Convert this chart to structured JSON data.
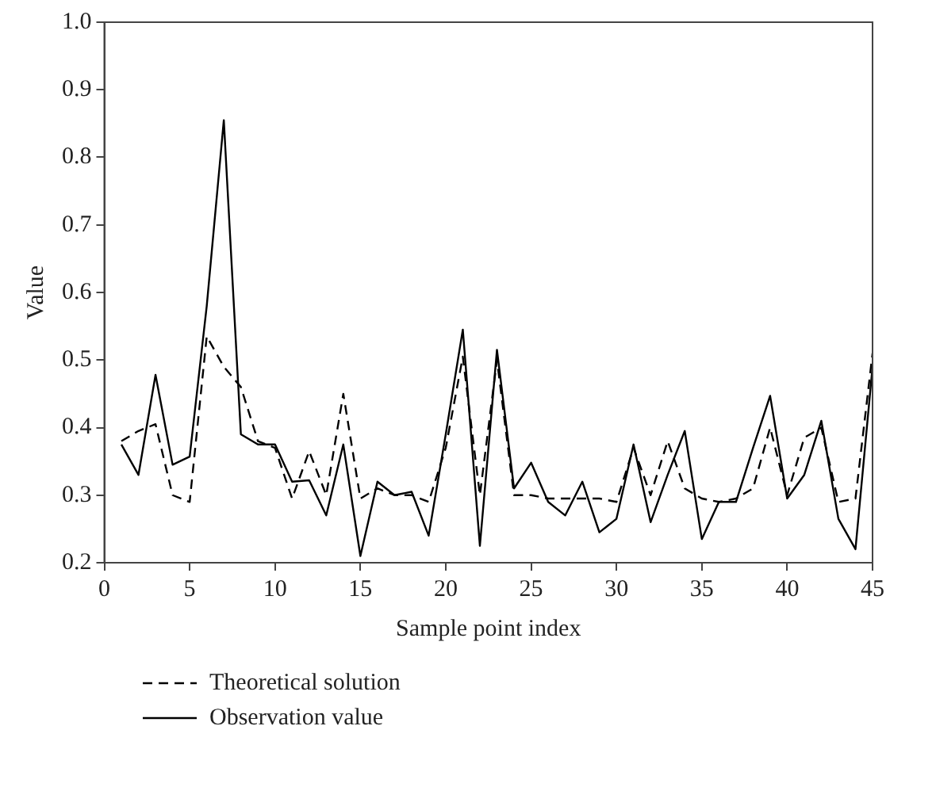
{
  "chart_data": {
    "type": "line",
    "xlabel": "Sample point index",
    "ylabel": "Value",
    "x": [
      1,
      2,
      3,
      4,
      5,
      6,
      7,
      8,
      9,
      10,
      11,
      12,
      13,
      14,
      15,
      16,
      17,
      18,
      19,
      20,
      21,
      22,
      23,
      24,
      25,
      26,
      27,
      28,
      29,
      30,
      31,
      32,
      33,
      34,
      35,
      36,
      37,
      38,
      39,
      40,
      41,
      42,
      43,
      44,
      45
    ],
    "series": [
      {
        "name": "Theoretical solution",
        "color": "#000000",
        "line_style": "dashed",
        "values": [
          0.38,
          0.395,
          0.405,
          0.3,
          0.29,
          0.535,
          0.49,
          0.46,
          0.38,
          0.37,
          0.295,
          0.365,
          0.3,
          0.45,
          0.295,
          0.31,
          0.3,
          0.3,
          0.29,
          0.37,
          0.505,
          0.3,
          0.5,
          0.3,
          0.3,
          0.295,
          0.295,
          0.295,
          0.295,
          0.29,
          0.37,
          0.3,
          0.38,
          0.31,
          0.295,
          0.29,
          0.295,
          0.31,
          0.4,
          0.3,
          0.385,
          0.4,
          0.29,
          0.295,
          0.51
        ]
      },
      {
        "name": "Observation value",
        "color": "#000000",
        "line_style": "solid",
        "values": [
          0.375,
          0.33,
          0.478,
          0.345,
          0.357,
          0.58,
          0.855,
          0.39,
          0.375,
          0.375,
          0.32,
          0.322,
          0.27,
          0.375,
          0.21,
          0.32,
          0.3,
          0.305,
          0.24,
          0.39,
          0.545,
          0.225,
          0.515,
          0.31,
          0.348,
          0.29,
          0.27,
          0.32,
          0.245,
          0.265,
          0.375,
          0.26,
          0.33,
          0.395,
          0.235,
          0.29,
          0.29,
          0.37,
          0.447,
          0.295,
          0.33,
          0.41,
          0.265,
          0.22,
          0.49
        ]
      }
    ],
    "xlim": [
      0,
      45
    ],
    "xticks": [
      0,
      5,
      10,
      15,
      20,
      25,
      30,
      35,
      40,
      45
    ],
    "ylim": [
      0.2,
      1.0
    ],
    "yticks": [
      0.2,
      0.3,
      0.4,
      0.5,
      0.6,
      0.7,
      0.8,
      0.9,
      {
        "value": 1.0,
        "label": "1.0"
      }
    ],
    "grid": false,
    "legend": "bottom",
    "marker": "none"
  }
}
